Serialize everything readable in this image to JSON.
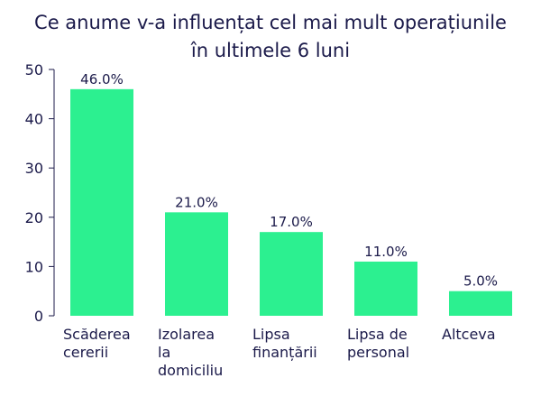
{
  "chart_data": {
    "type": "bar",
    "title_lines": [
      "Ce anume v-a influențat cel mai mult operațiunile",
      "în ultimele 6 luni"
    ],
    "categories": [
      [
        "Scăderea",
        "cererii"
      ],
      [
        "Izolarea",
        "la",
        "domiciliu"
      ],
      [
        "Lipsa",
        "finanțării"
      ],
      [
        "Lipsa de",
        "personal"
      ],
      [
        "Altceva"
      ]
    ],
    "values": [
      46.0,
      21.0,
      17.0,
      11.0,
      5.0
    ],
    "data_labels": [
      "46.0%",
      "21.0%",
      "17.0%",
      "11.0%",
      "5.0%"
    ],
    "ylim": [
      0,
      50
    ],
    "yticks": [
      0,
      10,
      20,
      30,
      40,
      50
    ],
    "xlabel": "",
    "ylabel": "",
    "grid": false,
    "colors": {
      "bar": "#2cf090",
      "text": "#1b1a4a",
      "axis": "#1b1a4a"
    }
  }
}
